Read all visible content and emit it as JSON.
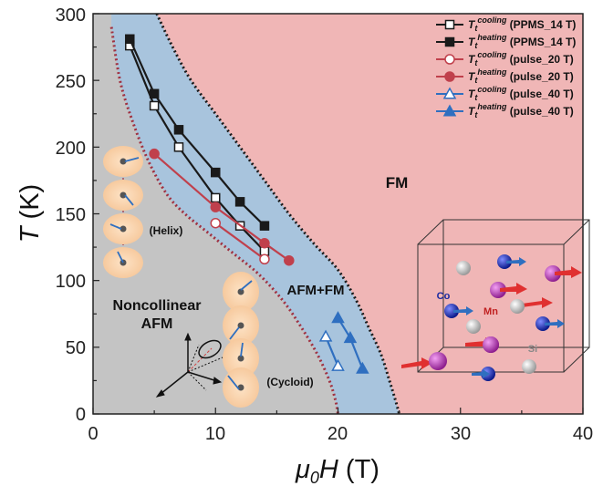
{
  "chart_data": {
    "type": "line",
    "xlabel_parts": [
      "μ",
      "0",
      "H",
      " (T)"
    ],
    "ylabel_parts": [
      "T",
      " (K)"
    ],
    "xlim": [
      0,
      40
    ],
    "ylim": [
      0,
      300
    ],
    "xticks": [
      "0",
      "10",
      "20",
      "30",
      "40"
    ],
    "yticks": [
      "0",
      "50",
      "100",
      "150",
      "200",
      "250",
      "300"
    ],
    "regions": {
      "fm": "FM",
      "afm_fm": "AFM+FM",
      "noncollinear_1": "Noncollinear",
      "noncollinear_2": "AFM",
      "helix": "(Helix)",
      "cycloid": "(Cycloid)"
    },
    "crystal_labels": {
      "co": "Co",
      "mn": "Mn",
      "si": "Si"
    },
    "colors": {
      "fm_region": "#f0b6b6",
      "afm_fm_region": "#a8c4dd",
      "afm_region": "#c4c4c4",
      "ppms": "#1a1a1a",
      "pulse20": "#c0404c",
      "pulse40": "#2f6fc0"
    },
    "boundaries": {
      "upper": {
        "x": [
          5.2,
          6.5,
          8,
          10,
          12,
          14,
          16,
          18,
          20,
          21.5,
          22.5,
          23.5,
          24.2,
          24.7,
          25
        ],
        "y": [
          300,
          275,
          250,
          225,
          200,
          175,
          150,
          128,
          108,
          85,
          65,
          45,
          25,
          10,
          0
        ]
      },
      "lower": {
        "x": [
          1.5,
          2.2,
          3.2,
          4.5,
          6,
          7.5,
          9.5,
          11.5,
          13.5,
          15.5,
          17,
          18.3,
          19.3,
          19.8,
          20
        ],
        "y": [
          290,
          250,
          220,
          190,
          165,
          150,
          135,
          120,
          105,
          85,
          65,
          45,
          25,
          10,
          0
        ]
      }
    },
    "series": [
      {
        "name": "cooling (PPMS_14 T)",
        "marker": "open-square",
        "color": "#1a1a1a",
        "x": [
          3,
          5,
          7,
          10,
          12,
          14
        ],
        "y": [
          276,
          231,
          200,
          162,
          141,
          122
        ]
      },
      {
        "name": "heating (PPMS_14 T)",
        "marker": "filled-square",
        "color": "#1a1a1a",
        "x": [
          3,
          5,
          7,
          10,
          12,
          14
        ],
        "y": [
          281,
          240,
          213,
          181,
          159,
          141
        ]
      },
      {
        "name": "cooling (pulse_20 T)",
        "marker": "open-circle",
        "color": "#c0404c",
        "x": [
          10,
          14
        ],
        "y": [
          143,
          116
        ]
      },
      {
        "name": "heating (pulse_20 T)",
        "marker": "filled-circle",
        "color": "#c0404c",
        "x": [
          5,
          10,
          14,
          16
        ],
        "y": [
          195,
          155,
          128,
          115
        ]
      },
      {
        "name": "cooling (pulse_40 T)",
        "marker": "open-triangle",
        "color": "#2f6fc0",
        "x": [
          19,
          20
        ],
        "y": [
          58,
          36
        ]
      },
      {
        "name": "heating (pulse_40 T)",
        "marker": "filled-triangle",
        "color": "#2f6fc0",
        "x": [
          20,
          21,
          22
        ],
        "y": [
          72,
          57,
          34
        ]
      }
    ],
    "legend": [
      {
        "sub": "cooling",
        "suffix": " (PPMS_14 T)",
        "marker": "open-square",
        "color": "#1a1a1a"
      },
      {
        "sub": "heating",
        "suffix": " (PPMS_14 T)",
        "marker": "filled-square",
        "color": "#1a1a1a"
      },
      {
        "sub": "cooling",
        "suffix": " (pulse_20 T)",
        "marker": "open-circle",
        "color": "#c0404c"
      },
      {
        "sub": "heating",
        "suffix": " (pulse_20 T)",
        "marker": "filled-circle",
        "color": "#c0404c"
      },
      {
        "sub": "cooling",
        "suffix": " (pulse_40 T)",
        "marker": "open-triangle",
        "color": "#2f6fc0"
      },
      {
        "sub": "heating",
        "suffix": " (pulse_40 T)",
        "marker": "filled-triangle",
        "color": "#2f6fc0"
      }
    ],
    "legend_var": "T",
    "legend_var_sub": "t",
    "legend_position": "top-right"
  }
}
